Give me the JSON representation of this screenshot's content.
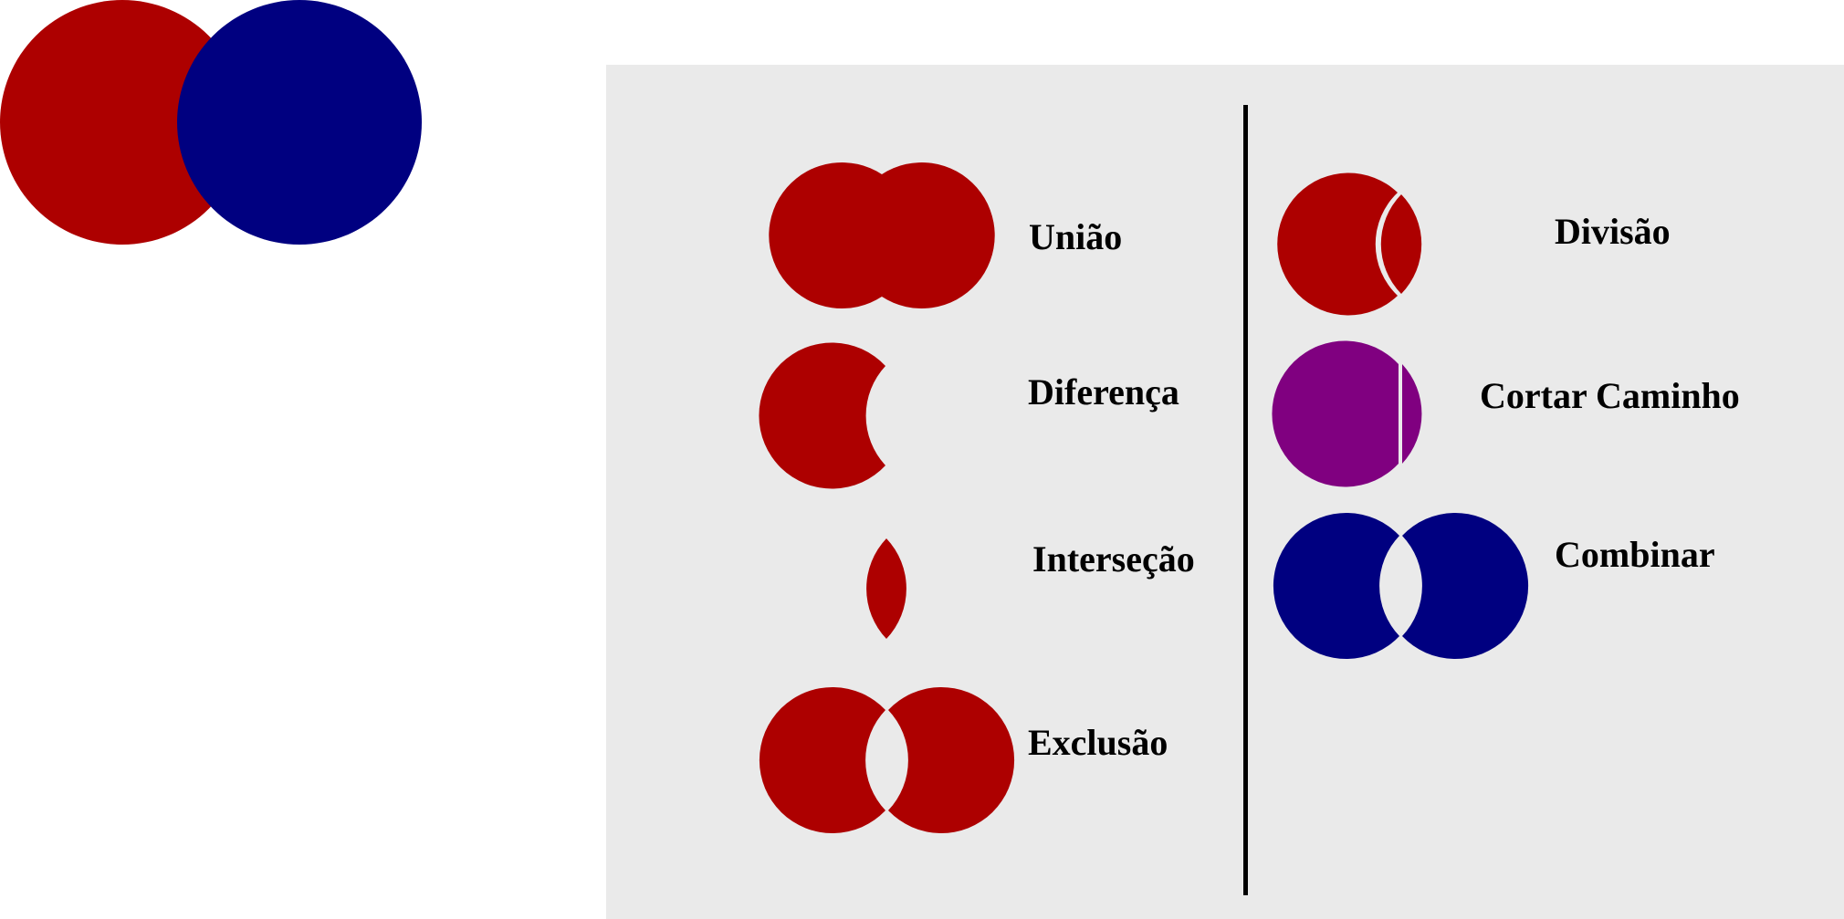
{
  "colors": {
    "red": "#AD0000",
    "blue": "#000080",
    "purple": "#800080",
    "panel": "#EAEAEA",
    "divider": "#000000",
    "background": "#FFFFFF"
  },
  "labels": {
    "union": "União",
    "difference": "Diferença",
    "intersection": "Interseção",
    "exclusion": "Exclusão",
    "division": "Divisão",
    "cut_path": "Cortar Caminho",
    "combine": "Combinar"
  }
}
